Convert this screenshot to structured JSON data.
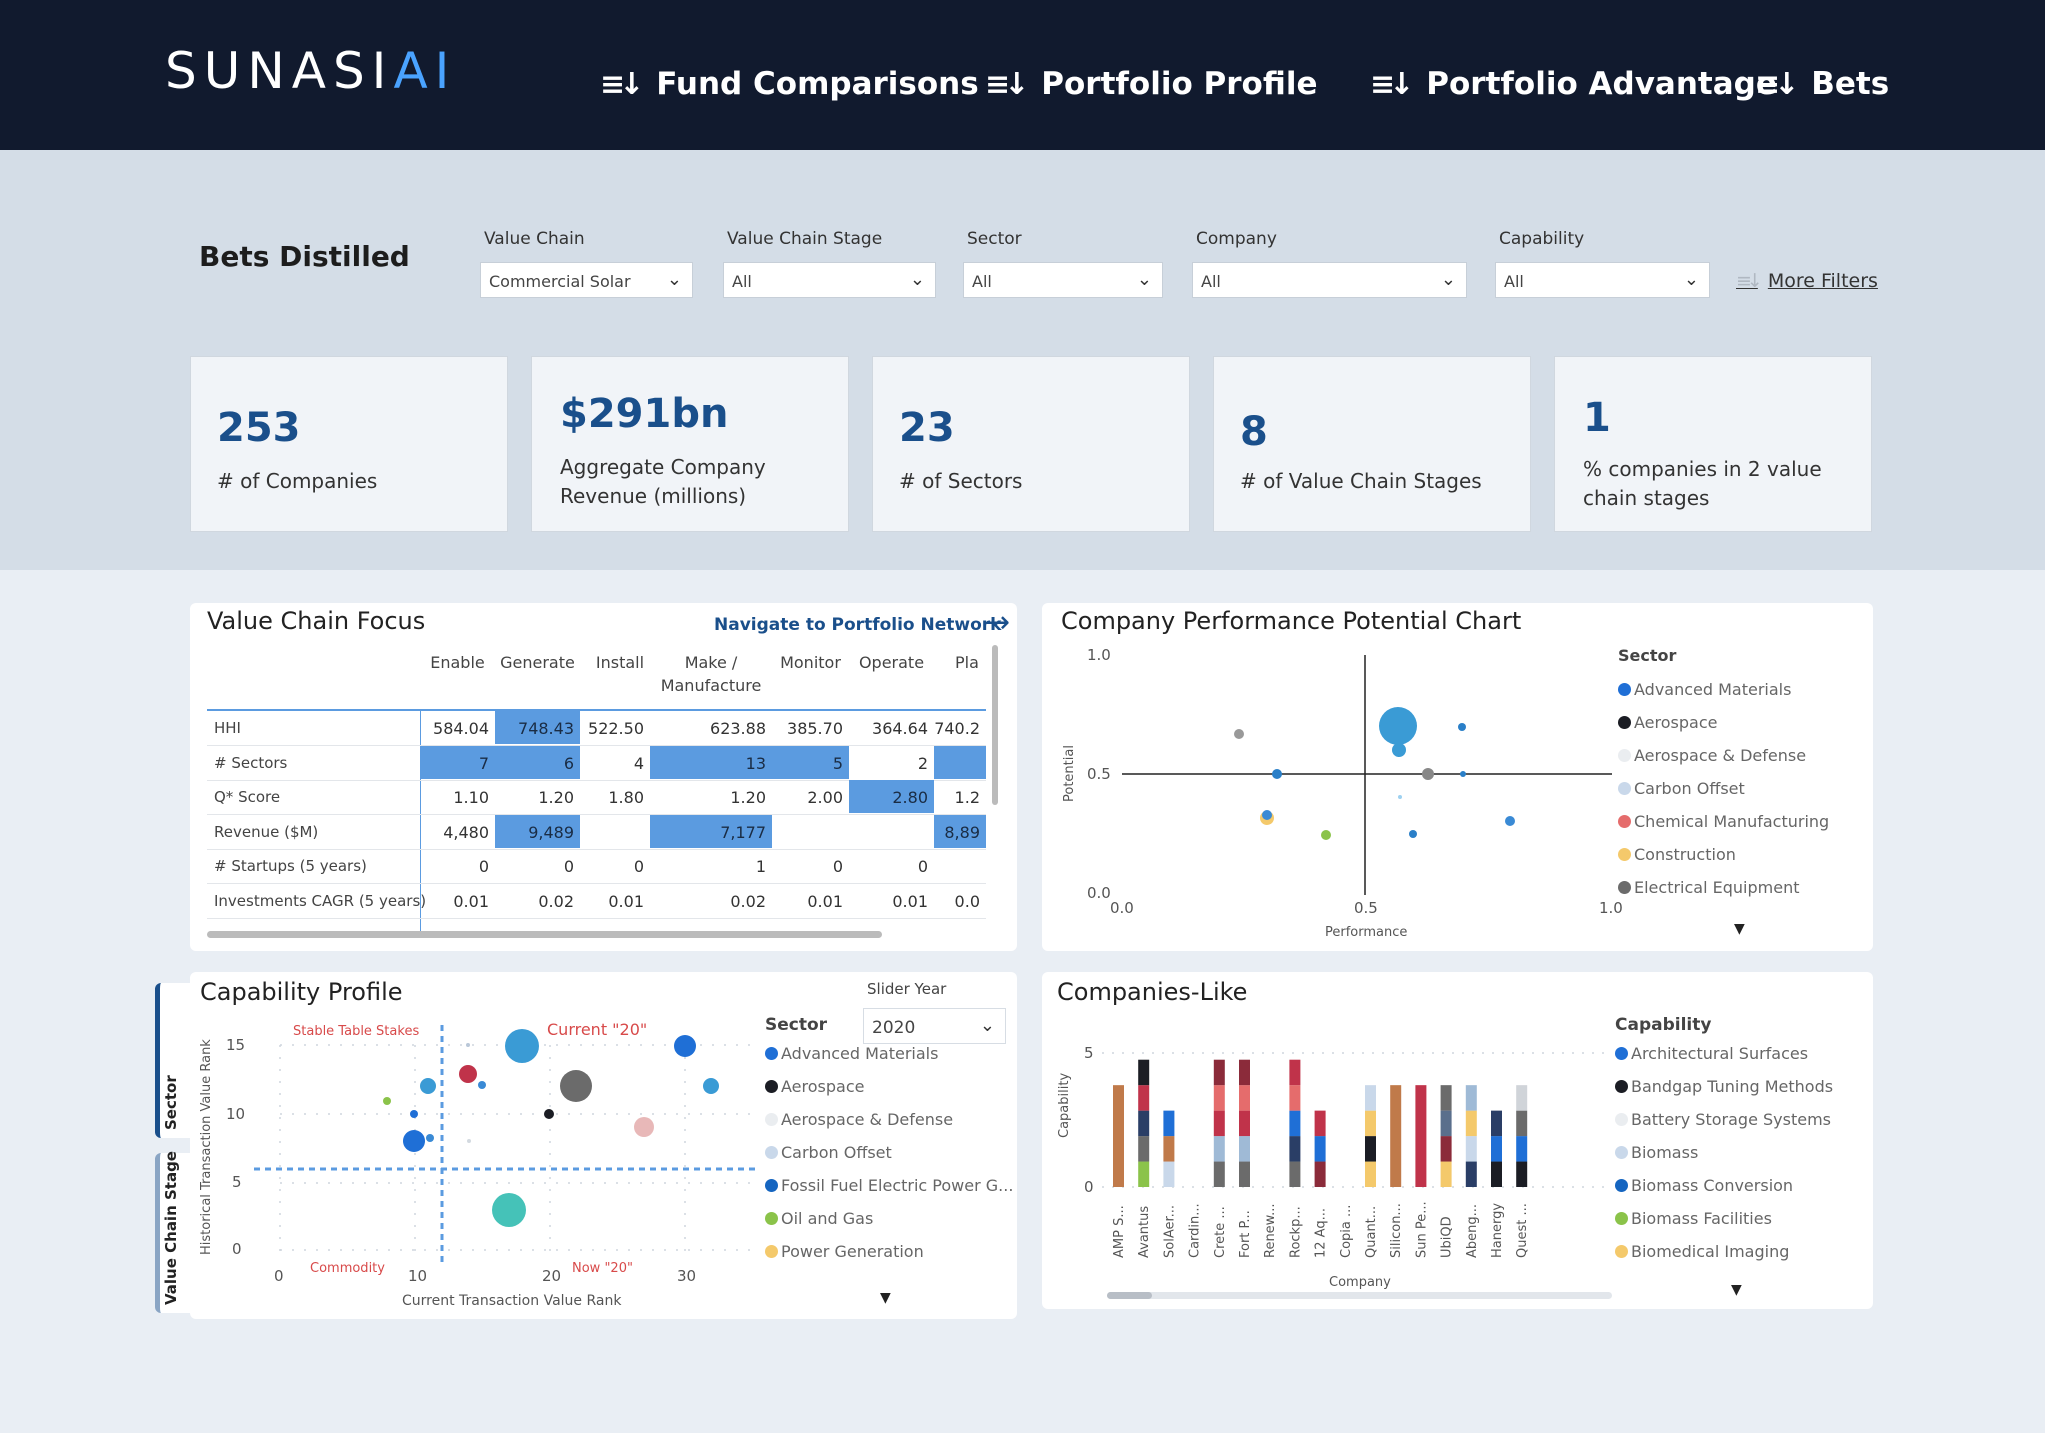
{
  "header": {
    "logo_main": "SUNASI",
    "logo_accent": "AI",
    "nav": [
      {
        "icon": "≡↓",
        "label": "Fund Comparisons"
      },
      {
        "icon": "≡↓",
        "label": "Portfolio Profile"
      },
      {
        "icon": "≡↓",
        "label": "Portfolio Advantage"
      },
      {
        "icon": "≡↓",
        "label": "Bets"
      }
    ]
  },
  "filters": {
    "page_title": "Bets Distilled",
    "items": [
      {
        "label": "Value Chain",
        "value": "Commercial Solar"
      },
      {
        "label": "Value Chain Stage",
        "value": "All"
      },
      {
        "label": "Sector",
        "value": "All"
      },
      {
        "label": "Company",
        "value": "All"
      },
      {
        "label": "Capability",
        "value": "All"
      }
    ],
    "more_filters": "More Filters"
  },
  "kpis": [
    {
      "value": "253",
      "label": "# of Companies"
    },
    {
      "value": "$291bn",
      "label": "Aggregate Company Revenue (millions)"
    },
    {
      "value": "23",
      "label": "# of Sectors"
    },
    {
      "value": "8",
      "label": "# of Value Chain Stages"
    },
    {
      "value": "1",
      "label": "% companies in 2 value chain stages"
    }
  ],
  "value_chain_focus": {
    "title": "Value Chain Focus",
    "nav_link": "Navigate to Portfolio Network",
    "columns": [
      "Enable",
      "Generate",
      "Install",
      "Make / Manufacture",
      "Monitor",
      "Operate",
      "Pla"
    ],
    "rows": [
      {
        "label": "HHI",
        "values": [
          "584.04",
          "748.43",
          "522.50",
          "623.88",
          "385.70",
          "364.64",
          "740.2"
        ]
      },
      {
        "label": "# Sectors",
        "values": [
          "7",
          "6",
          "4",
          "13",
          "5",
          "2",
          ""
        ]
      },
      {
        "label": "Q* Score",
        "values": [
          "1.10",
          "1.20",
          "1.80",
          "1.20",
          "2.00",
          "2.80",
          "1.2"
        ]
      },
      {
        "label": "Revenue ($M)",
        "values": [
          "4,480",
          "9,489",
          "",
          "7,177",
          "",
          "",
          "8,89"
        ]
      },
      {
        "label": "# Startups (5 years)",
        "values": [
          "0",
          "0",
          "0",
          "1",
          "0",
          "0",
          ""
        ]
      },
      {
        "label": "Investments CAGR (5 years)",
        "values": [
          "0.01",
          "0.02",
          "0.01",
          "0.02",
          "0.01",
          "0.01",
          "0.0"
        ]
      }
    ]
  },
  "performance_chart": {
    "title": "Company Performance Potential Chart",
    "xlabel": "Performance",
    "ylabel": "Potential",
    "y_ticks": [
      "1.0",
      "0.5",
      "0.0"
    ],
    "x_ticks": [
      "0.0",
      "0.5",
      "1.0"
    ],
    "legend_title": "Sector",
    "legend": [
      {
        "name": "Advanced Materials",
        "color": "#1f6fd6"
      },
      {
        "name": "Aerospace",
        "color": "#1b1d24"
      },
      {
        "name": "Aerospace & Defense",
        "color": "#eaedf0"
      },
      {
        "name": "Carbon Offset",
        "color": "#c9d8ea"
      },
      {
        "name": "Chemical Manufacturing",
        "color": "#e56c6c"
      },
      {
        "name": "Construction",
        "color": "#f4c96b"
      },
      {
        "name": "Electrical Equipment",
        "color": "#6b6b6b"
      }
    ]
  },
  "capability_profile": {
    "title": "Capability Profile",
    "tabs": [
      "Sector",
      "Value Chain Stage"
    ],
    "slider_label": "Slider Year",
    "slider_value": "2020",
    "xlabel": "Current Transaction Value Rank",
    "ylabel": "Historical Transaction Value Rank",
    "y_ticks": [
      "15",
      "10",
      "5",
      "0"
    ],
    "x_ticks": [
      "0",
      "10",
      "20",
      "30"
    ],
    "annotations": {
      "stable": "Stable Table Stakes",
      "current": "Current \"20\"",
      "commodity": "Commodity",
      "now": "Now \"20\""
    },
    "legend_title": "Sector",
    "legend": [
      {
        "name": "Advanced Materials",
        "color": "#1f6fd6"
      },
      {
        "name": "Aerospace",
        "color": "#1b1d24"
      },
      {
        "name": "Aerospace & Defense",
        "color": "#eaedf0"
      },
      {
        "name": "Carbon Offset",
        "color": "#c9d8ea"
      },
      {
        "name": "Fossil Fuel Electric Power G...",
        "color": "#1565c0"
      },
      {
        "name": "Oil and Gas",
        "color": "#8bc34a"
      },
      {
        "name": "Power Generation",
        "color": "#f4c96b"
      }
    ]
  },
  "companies_like": {
    "title": "Companies-Like",
    "xlabel": "Company",
    "ylabel": "Capability",
    "y_ticks": [
      "5",
      "0"
    ],
    "companies": [
      "AMP S...",
      "Avantus",
      "SolAer...",
      "Cardin...",
      "Crete ...",
      "Fort P...",
      "Renew...",
      "Rockp...",
      "12 Aq...",
      "Copia ...",
      "Quant...",
      "Silicon...",
      "Sun Pe...",
      "UbiQD",
      "Abeng...",
      "Hanergy",
      "Quest ..."
    ],
    "legend_title": "Capability",
    "legend": [
      {
        "name": "Architectural Surfaces",
        "color": "#1f6fd6"
      },
      {
        "name": "Bandgap Tuning Methods",
        "color": "#1b1d24"
      },
      {
        "name": "Battery Storage Systems",
        "color": "#eaedf0"
      },
      {
        "name": "Biomass",
        "color": "#c9d8ea"
      },
      {
        "name": "Biomass Conversion",
        "color": "#1565c0"
      },
      {
        "name": "Biomass Facilities",
        "color": "#8bc34a"
      },
      {
        "name": "Biomedical Imaging",
        "color": "#f4c96b"
      }
    ]
  }
}
